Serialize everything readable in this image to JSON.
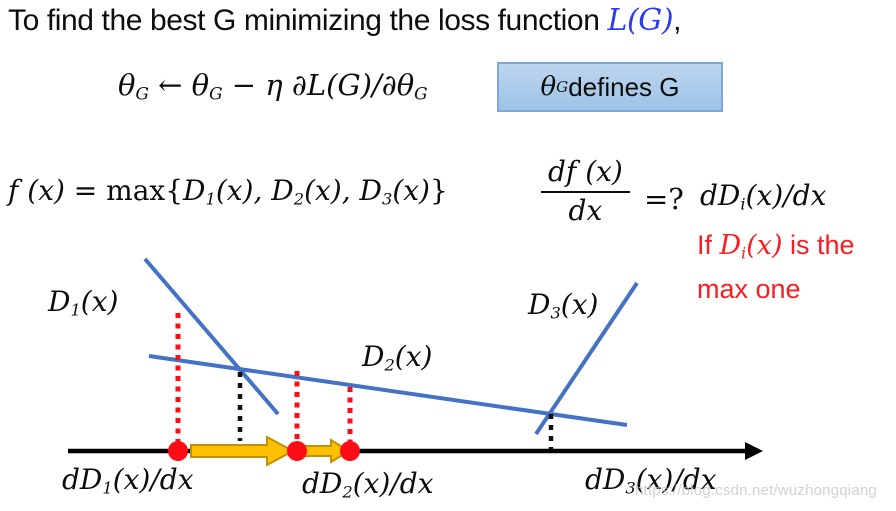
{
  "palette": {
    "ink": "#0d0d0d",
    "accent-blue-text": "#2b3bf0",
    "line-blue": "#4472c4",
    "red": "#ff0d16",
    "red-text": "#fb1b21",
    "arrow-fill": "#ffc000",
    "arrow-stroke": "#bf9000",
    "box-fill-top": "#bdd6ef",
    "box-fill-bottom": "#9dc3e6",
    "box-border": "#7ea6d6",
    "axis-black": "#000000",
    "watermark": "#c3c3c3"
  },
  "title": {
    "segments": [
      {
        "t": "To find the best G minimizing the loss function ",
        "c": "sans"
      },
      {
        "t": "L(G)",
        "c": "math blue"
      },
      {
        "t": ",",
        "c": "sans"
      }
    ]
  },
  "update_rule": {
    "segments": [
      {
        "t": "θ",
        "c": "math"
      },
      {
        "t": "G",
        "c": "sub"
      },
      {
        "t": " ← ",
        "c": "up"
      },
      {
        "t": "θ",
        "c": "math"
      },
      {
        "t": "G",
        "c": "sub"
      },
      {
        "t": " − η ∂L(G)/∂θ",
        "c": "math"
      },
      {
        "t": "G",
        "c": "sub"
      }
    ]
  },
  "theta_box": {
    "segments": [
      {
        "t": "θ",
        "c": "math"
      },
      {
        "t": "G",
        "c": "sub"
      },
      {
        "t": " defines G",
        "c": "sans"
      }
    ]
  },
  "max_formula": {
    "segments": [
      {
        "t": "f (x) = ",
        "c": "math"
      },
      {
        "t": "max{",
        "c": "up"
      },
      {
        "t": "D",
        "c": "math"
      },
      {
        "t": "1",
        "c": "sub"
      },
      {
        "t": "(x), ",
        "c": "math"
      },
      {
        "t": "D",
        "c": "math"
      },
      {
        "t": "2",
        "c": "sub"
      },
      {
        "t": "(x), ",
        "c": "math"
      },
      {
        "t": "D",
        "c": "math"
      },
      {
        "t": "3",
        "c": "sub"
      },
      {
        "t": "(x)",
        "c": "math"
      },
      {
        "t": "}",
        "c": "up"
      }
    ]
  },
  "derivative": {
    "numerator_segments": [
      {
        "t": "df (x)",
        "c": "math"
      }
    ],
    "denominator_segments": [
      {
        "t": "dx",
        "c": "math"
      }
    ],
    "equals": "=?",
    "rhs_segments": [
      {
        "t": "dD",
        "c": "math"
      },
      {
        "t": "i",
        "c": "sub"
      },
      {
        "t": "(x)/dx",
        "c": "math"
      }
    ]
  },
  "red_note": {
    "line1_segments": [
      {
        "t": "If ",
        "c": "sans red"
      },
      {
        "t": "D",
        "c": "math red"
      },
      {
        "t": "i",
        "c": "sub red"
      },
      {
        "t": "(x)",
        "c": "math red"
      },
      {
        "t": " is the",
        "c": "sans red"
      }
    ],
    "line2_segments": [
      {
        "t": "max one",
        "c": "sans red"
      }
    ]
  },
  "diagram": {
    "labels": {
      "d1": {
        "segments": [
          {
            "t": "D",
            "c": "math"
          },
          {
            "t": "1",
            "c": "sub"
          },
          {
            "t": "(x)",
            "c": "math"
          }
        ]
      },
      "d2": {
        "segments": [
          {
            "t": "D",
            "c": "math"
          },
          {
            "t": "2",
            "c": "sub"
          },
          {
            "t": "(x)",
            "c": "math"
          }
        ]
      },
      "d3": {
        "segments": [
          {
            "t": "D",
            "c": "math"
          },
          {
            "t": "3",
            "c": "sub"
          },
          {
            "t": "(x)",
            "c": "math"
          }
        ]
      },
      "dd1": {
        "segments": [
          {
            "t": "dD",
            "c": "math"
          },
          {
            "t": "1",
            "c": "sub"
          },
          {
            "t": "(x)/dx",
            "c": "math"
          }
        ]
      },
      "dd2": {
        "segments": [
          {
            "t": "dD",
            "c": "math"
          },
          {
            "t": "2",
            "c": "sub"
          },
          {
            "t": "(x)/dx",
            "c": "math"
          }
        ]
      },
      "dd3": {
        "segments": [
          {
            "t": "dD",
            "c": "math"
          },
          {
            "t": "3",
            "c": "sub"
          },
          {
            "t": "(x)/dx",
            "c": "math"
          }
        ]
      }
    }
  },
  "watermark": "https://blog.csdn.net/wuzhongqiang"
}
